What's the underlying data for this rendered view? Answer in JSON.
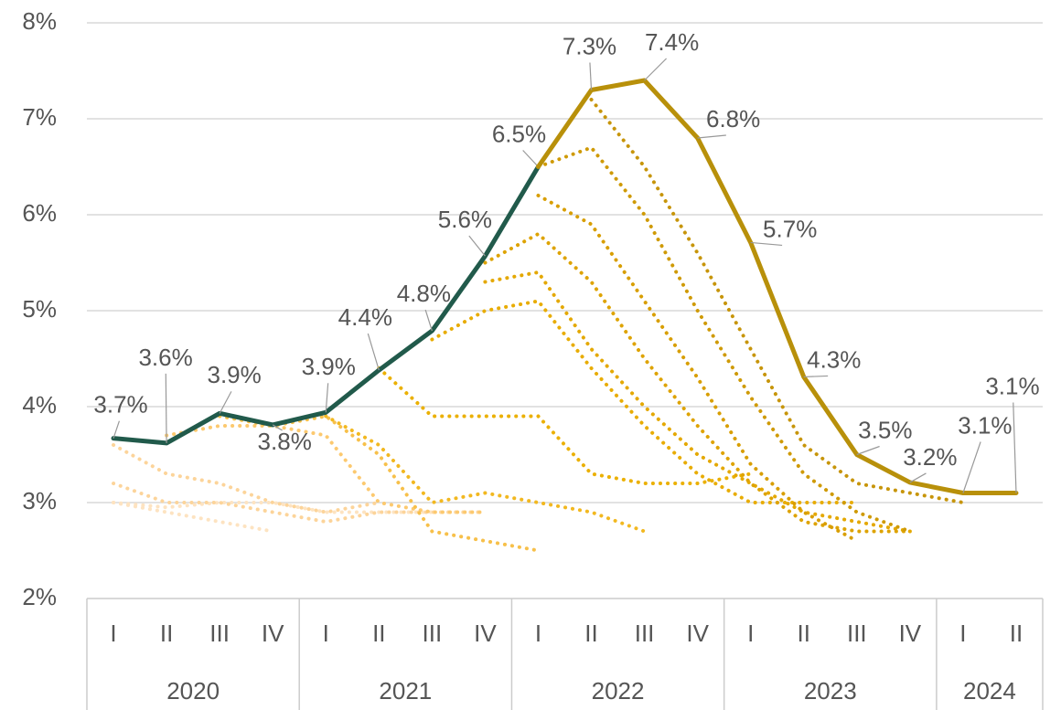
{
  "chart_data": {
    "type": "line",
    "categories": [
      "I",
      "II",
      "III",
      "IV",
      "I",
      "II",
      "III",
      "IV",
      "I",
      "II",
      "III",
      "IV",
      "I",
      "II",
      "III",
      "IV",
      "I",
      "II"
    ],
    "category_groups": [
      {
        "label": "2020",
        "size": 4
      },
      {
        "label": "2021",
        "size": 4
      },
      {
        "label": "2022",
        "size": 4
      },
      {
        "label": "2023",
        "size": 4
      },
      {
        "label": "2024",
        "size": 2
      }
    ],
    "ylim": [
      2,
      8
    ],
    "yticks": [
      {
        "value": 2,
        "label": "2%"
      },
      {
        "value": 3,
        "label": "3%"
      },
      {
        "value": 4,
        "label": "4%"
      },
      {
        "value": 5,
        "label": "5%"
      },
      {
        "value": 6,
        "label": "6%"
      },
      {
        "value": 7,
        "label": "7%"
      },
      {
        "value": 8,
        "label": "8%"
      }
    ],
    "grid": true,
    "series": [
      {
        "color": "#fde3c1",
        "style": "dotted",
        "values": [
          3.0,
          2.9,
          2.8,
          2.7,
          null,
          null,
          null,
          null,
          null,
          null,
          null,
          null,
          null,
          null,
          null,
          null,
          null,
          null
        ]
      },
      {
        "color": "#fde3c1",
        "style": "dotted",
        "values": [
          3.0,
          2.95,
          3.0,
          3.0,
          2.9,
          2.9,
          2.9,
          null,
          null,
          null,
          null,
          null,
          null,
          null,
          null,
          null,
          null,
          null
        ]
      },
      {
        "color": "#fcd49a",
        "style": "dotted",
        "values": [
          3.2,
          3.0,
          3.0,
          2.9,
          2.8,
          2.9,
          2.9,
          2.9,
          null,
          null,
          null,
          null,
          null,
          null,
          null,
          null,
          null,
          null
        ]
      },
      {
        "color": "#fcd49a",
        "style": "dotted",
        "values": [
          3.6,
          3.3,
          3.2,
          3.0,
          2.9,
          3.0,
          null,
          null,
          null,
          null,
          null,
          null,
          null,
          null,
          null,
          null,
          null,
          null
        ]
      },
      {
        "color": "#fcc96f",
        "style": "dotted",
        "values": [
          null,
          3.7,
          3.8,
          3.8,
          3.7,
          3.0,
          2.9,
          2.9,
          null,
          null,
          null,
          null,
          null,
          null,
          null,
          null,
          null,
          null
        ]
      },
      {
        "color": "#f7c04a",
        "style": "dotted",
        "values": [
          null,
          null,
          3.9,
          3.8,
          3.9,
          3.5,
          2.7,
          2.6,
          2.5,
          null,
          null,
          null,
          null,
          null,
          null,
          null,
          null,
          null
        ]
      },
      {
        "color": "#f2b820",
        "style": "dotted",
        "values": [
          null,
          null,
          null,
          null,
          3.9,
          3.6,
          3.0,
          3.1,
          3.0,
          2.9,
          2.7,
          null,
          null,
          null,
          null,
          null,
          null,
          null
        ]
      },
      {
        "color": "#ebb000",
        "style": "dotted",
        "values": [
          null,
          null,
          null,
          null,
          null,
          4.4,
          3.9,
          3.9,
          3.9,
          3.3,
          3.2,
          3.2,
          3.3,
          null,
          null,
          null,
          null,
          null
        ]
      },
      {
        "color": "#e8ac00",
        "style": "dotted",
        "values": [
          null,
          null,
          null,
          null,
          null,
          null,
          4.7,
          5.0,
          5.1,
          4.4,
          3.8,
          3.3,
          3.0,
          3.0,
          3.0,
          null,
          null,
          null
        ]
      },
      {
        "color": "#e4a800",
        "style": "dotted",
        "values": [
          null,
          null,
          null,
          null,
          null,
          null,
          null,
          5.3,
          5.4,
          4.6,
          4.0,
          3.5,
          3.2,
          2.9,
          2.8,
          2.7,
          null,
          null
        ]
      },
      {
        "color": "#dea300",
        "style": "dotted",
        "values": [
          null,
          null,
          null,
          null,
          null,
          null,
          null,
          5.5,
          5.8,
          5.3,
          4.5,
          3.8,
          3.2,
          2.8,
          2.7,
          2.7,
          null,
          null
        ]
      },
      {
        "color": "#d89e00",
        "style": "dotted",
        "values": [
          null,
          null,
          null,
          null,
          null,
          null,
          null,
          null,
          6.2,
          5.9,
          5.1,
          4.3,
          3.4,
          2.9,
          2.6,
          null,
          null,
          null
        ]
      },
      {
        "color": "#cf9a05",
        "style": "dotted",
        "values": [
          null,
          null,
          null,
          null,
          null,
          null,
          null,
          null,
          6.5,
          6.7,
          6.0,
          5.0,
          4.1,
          3.3,
          2.9,
          2.7,
          null,
          null
        ]
      },
      {
        "color": "#c7950a",
        "style": "dotted",
        "values": [
          null,
          null,
          null,
          null,
          null,
          null,
          null,
          null,
          null,
          7.2,
          6.5,
          5.6,
          4.6,
          3.6,
          3.2,
          3.1,
          3.0,
          null
        ]
      },
      {
        "color": "#215a4b",
        "style": "solid",
        "values": [
          3.67,
          3.62,
          3.93,
          3.81,
          3.94,
          4.38,
          4.79,
          5.57,
          6.5,
          null,
          null,
          null,
          null,
          null,
          null,
          null,
          null,
          null
        ],
        "value_labels": [
          "3.7%",
          "3.6%",
          "3.9%",
          "3.8%",
          "3.9%",
          "4.4%",
          "4.8%",
          "5.6%",
          "6.5%",
          null,
          null,
          null,
          null,
          null,
          null,
          null,
          null,
          null
        ]
      },
      {
        "color": "#b8900a",
        "style": "solid",
        "values": [
          null,
          null,
          null,
          null,
          null,
          null,
          null,
          null,
          6.5,
          7.3,
          7.4,
          6.8,
          5.71,
          4.31,
          3.5,
          3.21,
          3.1,
          3.1
        ],
        "value_labels": [
          null,
          null,
          null,
          null,
          null,
          null,
          null,
          null,
          null,
          "7.3%",
          "7.4%",
          "6.8%",
          "5.7%",
          "4.3%",
          "3.5%",
          "3.2%",
          "3.1%",
          "3.1%"
        ]
      }
    ]
  }
}
